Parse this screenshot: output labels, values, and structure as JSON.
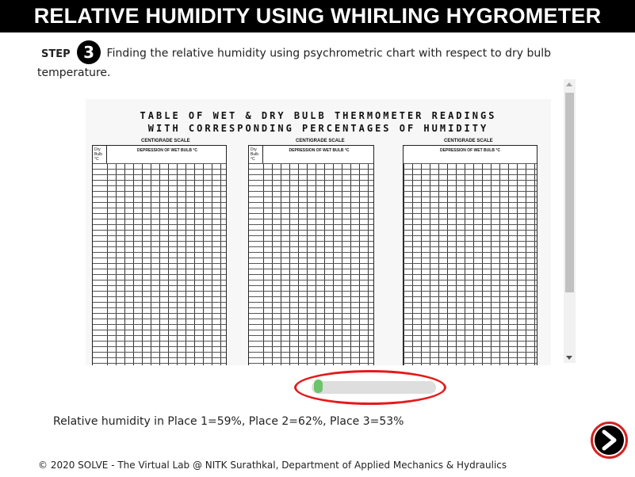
{
  "header": {
    "title": "RELATIVE HUMIDITY USING WHIRLING HYGROMETER"
  },
  "step": {
    "label": "STEP",
    "number": "3",
    "text": "Finding the relative humidity using psychrometric chart with respect to dry bulb temperature."
  },
  "chart_image": {
    "title_line1": "TABLE OF WET & DRY BULB THERMOMETER READINGS",
    "title_line2": "WITH CORRESPONDING PERCENTAGES OF HUMIDITY",
    "tables": [
      {
        "caption": "CENTIGRADE SCALE",
        "column_title": "DEPRESSION OF WET BULB °C",
        "row_header": "Dry Bulb °C"
      },
      {
        "caption": "CENTIGRADE SCALE",
        "column_title": "DEPRESSION OF WET BULB °C",
        "row_header": "Dry Bulb °C"
      },
      {
        "caption": "CENTIGRADE SCALE",
        "column_title": "DEPRESSION OF WET BULB °C",
        "row_header": ""
      }
    ]
  },
  "slider": {
    "value": 0.0
  },
  "result": {
    "text": "Relative humidity in Place 1=59%, Place 2=62%, Place 3=53%"
  },
  "next_button": {
    "icon": "arrow-right-icon"
  },
  "footer": {
    "text": "© 2020 SOLVE - The Virtual Lab @ NITK Surathkal, Department of Applied Mechanics & Hydraulics"
  },
  "colors": {
    "header_bg": "#000000",
    "header_text": "#ffffff",
    "highlight_ring": "#e31b1b",
    "slider_thumb": "#6ec36b"
  }
}
